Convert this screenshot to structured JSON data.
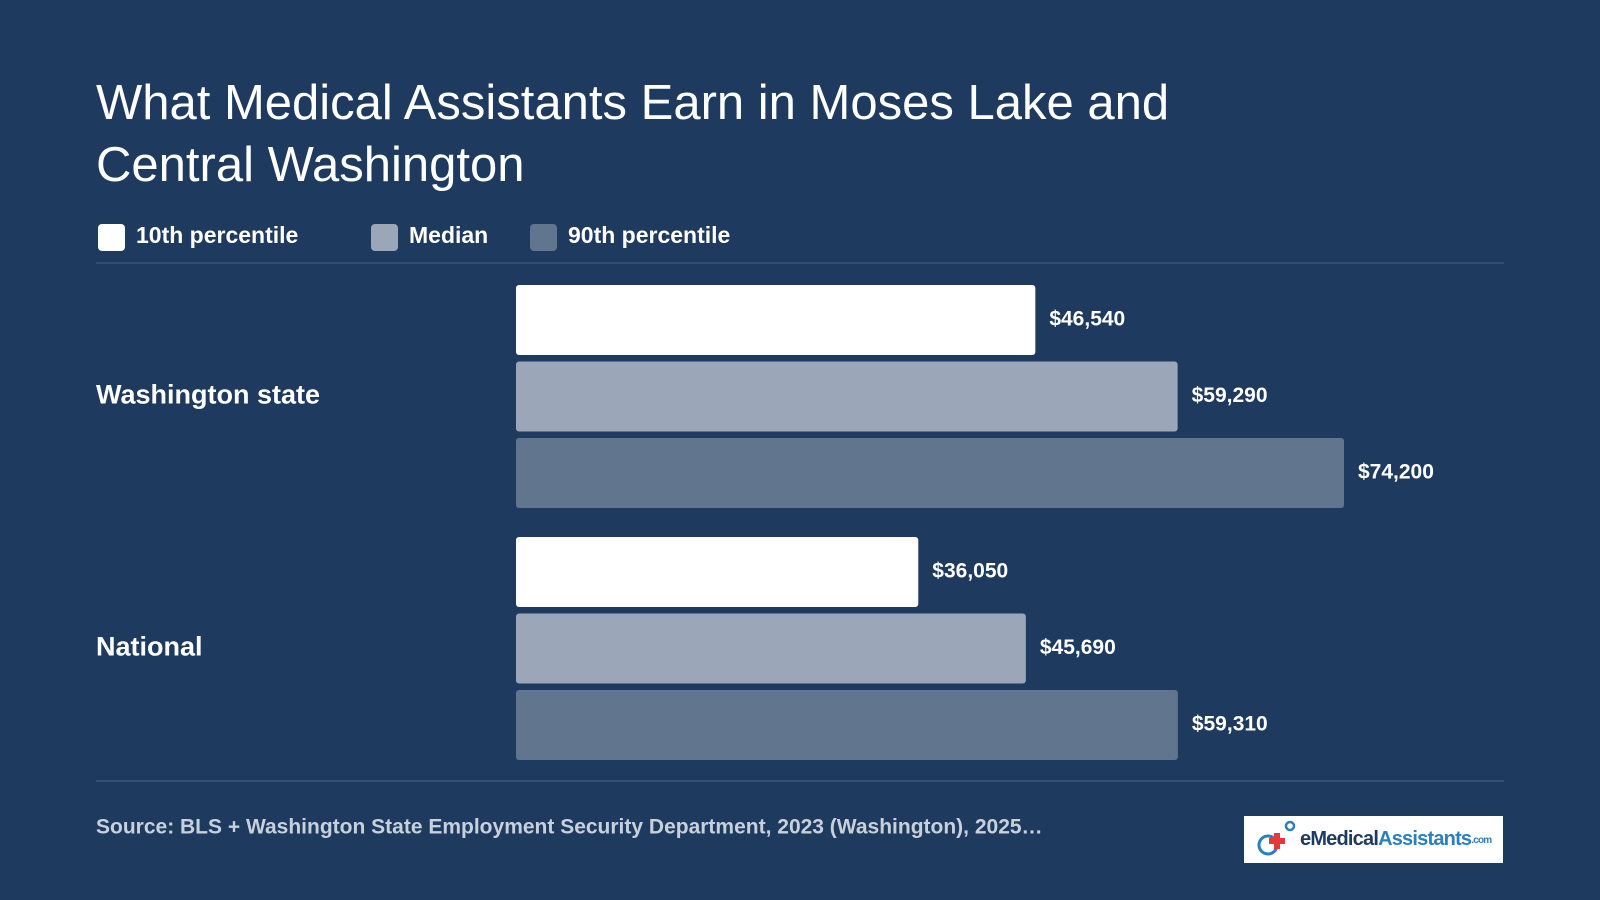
{
  "chart_data": {
    "type": "hbar",
    "title": [
      "What Medical Assistants Earn in Moses Lake and",
      "Central Washington"
    ],
    "categories": [
      "Washington state",
      "National"
    ],
    "series": [
      {
        "name": "10th percentile",
        "color": "#ffffff",
        "values": [
          46540,
          36050
        ],
        "value_labels": [
          "$46,540",
          "$36,050"
        ]
      },
      {
        "name": "Median",
        "color": "#9ba6b9",
        "values": [
          59290,
          45690
        ],
        "value_labels": [
          "$59,290",
          "$45,690"
        ]
      },
      {
        "name": "90th percentile",
        "color": "#62758f",
        "values": [
          74200,
          59310
        ],
        "value_labels": [
          "$74,200",
          "$59,310"
        ]
      }
    ],
    "source": "Source: BLS + Washington State Employment Security Department, 2023 (Washington), 2025…",
    "logo": {
      "prefix": "eMedical",
      "main": "Assistants",
      "suffix": ".com"
    }
  }
}
